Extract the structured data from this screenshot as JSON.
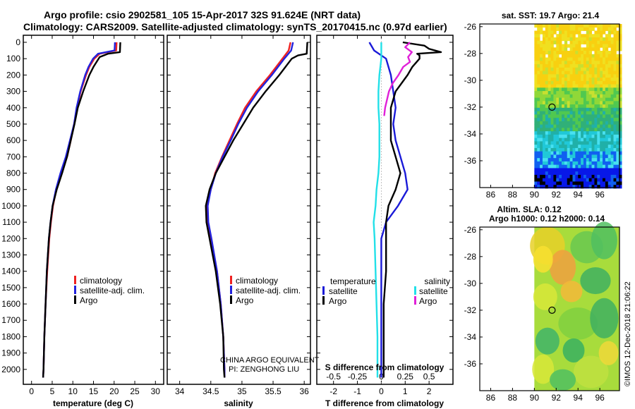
{
  "header": {
    "line1": "Argo profile: csio 2902581_105 15-Apr-2017 32S 91.624E (NRT data)",
    "line2": "Climatology: CARS2009. Satellite-adjusted climatology: synTS_20170415.nc (0.97d earlier)"
  },
  "colors": {
    "climatology": "#ee2222",
    "satellite_adj": "#2222dd",
    "argo": "#000000",
    "t_satellite": "#1a1ad8",
    "s_satellite": "#22e0e8",
    "s_argo": "#e020d8"
  },
  "chart_data": [
    {
      "id": "temperature",
      "type": "line",
      "xlabel": "temperature (deg C)",
      "ylabel": "",
      "xlim": [
        -2,
        32
      ],
      "ylim": [
        2100,
        0
      ],
      "xticks": [
        0,
        5,
        10,
        15,
        20,
        25,
        30
      ],
      "yticks": [
        0,
        100,
        200,
        300,
        400,
        500,
        600,
        700,
        800,
        900,
        1000,
        1100,
        1200,
        1300,
        1400,
        1500,
        1600,
        1700,
        1800,
        1900,
        2000
      ],
      "legend": [
        "climatology",
        "satellite-adj. clim.",
        "Argo"
      ],
      "legend_position": "bottom-center",
      "series": [
        {
          "name": "climatology",
          "color_key": "climatology",
          "depth": [
            0,
            50,
            70,
            100,
            150,
            200,
            300,
            400,
            500,
            600,
            700,
            800,
            900,
            1000,
            1100,
            1200,
            1400,
            1600,
            1800,
            2000,
            2050
          ],
          "values": [
            20.6,
            20.5,
            16.5,
            15.2,
            14.0,
            13.2,
            11.9,
            11.0,
            10.3,
            9.5,
            8.6,
            7.2,
            6.0,
            5.2,
            4.7,
            4.3,
            3.8,
            3.4,
            3.1,
            2.9,
            2.8
          ]
        },
        {
          "name": "satellite-adj. clim.",
          "color_key": "satellite_adj",
          "depth": [
            0,
            50,
            70,
            100,
            150,
            200,
            300,
            400,
            500,
            600,
            700,
            800,
            900,
            1000,
            1100,
            1200,
            1400,
            1600,
            1800,
            2000,
            2050
          ],
          "values": [
            20.2,
            20.1,
            16.1,
            14.9,
            13.8,
            13.0,
            11.8,
            10.9,
            10.3,
            9.3,
            8.3,
            7.0,
            5.9,
            5.1,
            4.6,
            4.2,
            3.7,
            3.4,
            3.1,
            2.9,
            2.8
          ]
        },
        {
          "name": "Argo",
          "color_key": "argo",
          "depth": [
            0,
            60,
            70,
            90,
            150,
            200,
            300,
            400,
            500,
            600,
            700,
            800,
            900,
            1000,
            1100,
            1200,
            1400,
            1600,
            1800,
            2000,
            2050
          ],
          "values": [
            21.5,
            21.4,
            18.5,
            16.5,
            15.0,
            14.0,
            12.5,
            11.2,
            10.4,
            9.5,
            8.6,
            7.4,
            6.1,
            5.1,
            4.6,
            4.2,
            3.7,
            3.4,
            3.1,
            2.9,
            2.8
          ]
        }
      ]
    },
    {
      "id": "salinity",
      "type": "line",
      "xlabel": "salinity",
      "xlim": [
        33.8,
        36.1
      ],
      "ylim": [
        2100,
        0
      ],
      "xticks": [
        34,
        34.5,
        35,
        35.5,
        36
      ],
      "legend": [
        "climatology",
        "satellite-adj. clim.",
        "Argo"
      ],
      "legend_position": "bottom-center",
      "annotation": [
        "CHINA ARGO EQUIVALENT",
        "PI: ZENGHONG LIU"
      ],
      "series": [
        {
          "name": "climatology",
          "color_key": "climatology",
          "depth": [
            0,
            50,
            100,
            200,
            300,
            400,
            500,
            600,
            700,
            800,
            900,
            1000,
            1100,
            1200,
            1400,
            1600,
            1800,
            2000,
            2050
          ],
          "values": [
            35.78,
            35.75,
            35.65,
            35.45,
            35.23,
            35.05,
            34.92,
            34.8,
            34.68,
            34.57,
            34.5,
            34.44,
            34.45,
            34.5,
            34.6,
            34.66,
            34.7,
            34.72,
            34.72
          ]
        },
        {
          "name": "satellite-adj. clim.",
          "color_key": "satellite_adj",
          "depth": [
            0,
            50,
            100,
            200,
            300,
            400,
            500,
            600,
            700,
            800,
            900,
            1000,
            1100,
            1200,
            1400,
            1600,
            1800,
            2000,
            2050
          ],
          "values": [
            35.82,
            35.79,
            35.68,
            35.48,
            35.26,
            35.08,
            34.94,
            34.82,
            34.69,
            34.58,
            34.5,
            34.45,
            34.46,
            34.51,
            34.6,
            34.66,
            34.7,
            34.72,
            34.72
          ]
        },
        {
          "name": "Argo",
          "color_key": "argo",
          "depth": [
            0,
            70,
            80,
            100,
            200,
            300,
            400,
            500,
            600,
            700,
            800,
            900,
            1000,
            1100,
            1200,
            1400,
            1600,
            1800,
            2000,
            2050
          ],
          "values": [
            36.05,
            36.04,
            35.9,
            35.8,
            35.6,
            35.38,
            35.18,
            35.02,
            34.86,
            34.72,
            34.58,
            34.48,
            34.42,
            34.43,
            34.48,
            34.58,
            34.65,
            34.7,
            34.71,
            34.72
          ]
        }
      ]
    },
    {
      "id": "difference",
      "type": "line",
      "xlabel": "T difference from climatology",
      "secondary_xlabel": "S difference from climatology",
      "xlim": [
        -2.7,
        3.0
      ],
      "ylim": [
        2100,
        0
      ],
      "xticks": [
        -2,
        -1,
        0,
        1,
        2
      ],
      "secondary_xticks": [
        -0.5,
        -0.25,
        0,
        0.25,
        0.5
      ],
      "secondary_xlim": [
        -0.675,
        0.75
      ],
      "legend_temperature": {
        "title": "temperature",
        "items": [
          "satellite",
          "Argo"
        ]
      },
      "legend_salinity": {
        "title": "salinity",
        "items": [
          "satellite",
          "Argo"
        ]
      },
      "series": [
        {
          "name": "T satellite",
          "color_key": "t_satellite",
          "scale": "T",
          "depth": [
            0,
            50,
            100,
            200,
            300,
            400,
            500,
            600,
            700,
            800,
            900,
            1000,
            1100,
            1200,
            1400,
            1600,
            1800,
            2000,
            2050
          ],
          "values": [
            -0.5,
            -0.3,
            0.2,
            0.4,
            0.5,
            0.6,
            0.5,
            0.6,
            0.8,
            1.0,
            1.1,
            0.7,
            0.2,
            0.0,
            0.0,
            0.0,
            0.0,
            0.0,
            0.0
          ]
        },
        {
          "name": "T Argo",
          "color_key": "argo",
          "scale": "T",
          "depth": [
            0,
            20,
            40,
            60,
            70,
            80,
            100,
            150,
            200,
            300,
            400,
            500,
            600,
            700,
            800,
            900,
            1000,
            1100,
            1200,
            1400,
            1600,
            1800,
            2000,
            2050
          ],
          "values": [
            0.9,
            1.8,
            2.0,
            2.5,
            1.5,
            1.6,
            1.6,
            1.3,
            1.1,
            0.6,
            0.4,
            0.4,
            0.4,
            0.6,
            0.8,
            0.6,
            0.3,
            0.2,
            0.2,
            0.2,
            0.1,
            0.1,
            0.1,
            0.1
          ]
        },
        {
          "name": "S satellite",
          "color_key": "s_satellite",
          "scale": "S",
          "depth": [
            0,
            50,
            100,
            200,
            300,
            400,
            500,
            600,
            700,
            800,
            900,
            1000,
            1100,
            1200,
            1400,
            1600,
            1800,
            2000,
            2050
          ],
          "values": [
            0.0,
            0.0,
            0.0,
            -0.02,
            -0.03,
            -0.03,
            -0.02,
            -0.02,
            -0.02,
            -0.03,
            -0.05,
            -0.06,
            -0.08,
            -0.07,
            -0.06,
            -0.05,
            -0.04,
            -0.04,
            -0.04
          ]
        },
        {
          "name": "S Argo",
          "color_key": "s_argo",
          "scale": "S",
          "depth": [
            0,
            30,
            60,
            90,
            120,
            150,
            200,
            250,
            300,
            350,
            400,
            450
          ],
          "values": [
            0.3,
            0.25,
            0.32,
            0.28,
            0.3,
            0.23,
            0.18,
            0.12,
            0.08,
            0.06,
            0.04,
            0.03
          ]
        }
      ]
    },
    {
      "id": "sst_map",
      "type": "heatmap",
      "title": "sat. SST: 19.7 Argo: 21.4",
      "xticks": [
        86,
        88,
        90,
        92,
        94,
        96
      ],
      "yticks": [
        -26,
        -28,
        -30,
        -32,
        -34,
        -36
      ],
      "xlim": [
        85,
        97.8
      ],
      "ylim": [
        -38,
        -25.8
      ],
      "argo_position": {
        "lon": 91.62,
        "lat": -32.0
      },
      "data_lon_start": 90
    },
    {
      "id": "sla_map",
      "type": "heatmap",
      "title_line1": "Altim. SLA: 0.12",
      "title_line2": "Argo h1000: 0.12 h2000: 0.14",
      "xticks": [
        86,
        88,
        90,
        92,
        94,
        96
      ],
      "yticks": [
        -26,
        -28,
        -30,
        -32,
        -34,
        -36
      ],
      "xlim": [
        85,
        97.8
      ],
      "ylim": [
        -38,
        -25.8
      ],
      "argo_position": {
        "lon": 91.62,
        "lat": -32.0
      },
      "data_lon_start": 90
    }
  ],
  "credit": "©IMOS 12-Dec-2018 21:06:22"
}
